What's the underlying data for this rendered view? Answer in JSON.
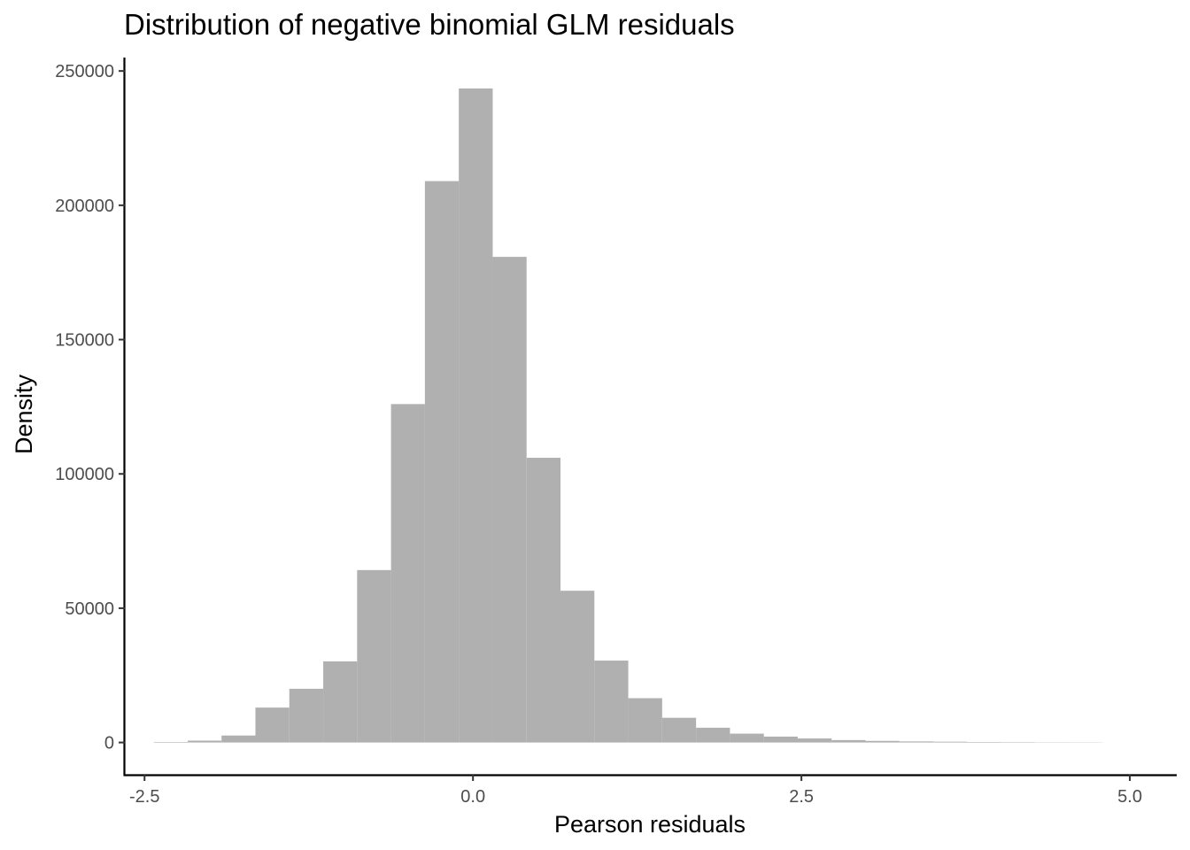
{
  "chart_data": {
    "type": "bar",
    "title": "Distribution of negative binomial GLM residuals",
    "xlabel": "Pearson residuals",
    "ylabel": "Density",
    "xlim": [
      -2.65,
      5.35
    ],
    "ylim": [
      -12000,
      255000
    ],
    "xticks": [
      -2.5,
      0.0,
      2.5,
      5.0
    ],
    "xtick_labels": [
      "-2.5",
      "0.0",
      "2.5",
      "5.0"
    ],
    "yticks": [
      0,
      50000,
      100000,
      150000,
      200000,
      250000
    ],
    "ytick_labels": [
      "0",
      "50000",
      "100000",
      "150000",
      "200000",
      "250000"
    ],
    "bin_width": 0.258,
    "bins": [
      {
        "x0": -2.43,
        "x1": -2.172,
        "value": 200
      },
      {
        "x0": -2.172,
        "x1": -1.914,
        "value": 700
      },
      {
        "x0": -1.914,
        "x1": -1.656,
        "value": 2600
      },
      {
        "x0": -1.656,
        "x1": -1.398,
        "value": 13000
      },
      {
        "x0": -1.398,
        "x1": -1.14,
        "value": 20000
      },
      {
        "x0": -1.14,
        "x1": -0.882,
        "value": 30200
      },
      {
        "x0": -0.882,
        "x1": -0.624,
        "value": 64200
      },
      {
        "x0": -0.624,
        "x1": -0.366,
        "value": 126000
      },
      {
        "x0": -0.366,
        "x1": -0.108,
        "value": 209000
      },
      {
        "x0": -0.108,
        "x1": 0.15,
        "value": 243500
      },
      {
        "x0": 0.15,
        "x1": 0.408,
        "value": 180800
      },
      {
        "x0": 0.408,
        "x1": 0.666,
        "value": 106000
      },
      {
        "x0": 0.666,
        "x1": 0.924,
        "value": 56500
      },
      {
        "x0": 0.924,
        "x1": 1.182,
        "value": 30500
      },
      {
        "x0": 1.182,
        "x1": 1.44,
        "value": 16500
      },
      {
        "x0": 1.44,
        "x1": 1.698,
        "value": 9200
      },
      {
        "x0": 1.698,
        "x1": 1.956,
        "value": 5500
      },
      {
        "x0": 1.956,
        "x1": 2.214,
        "value": 3300
      },
      {
        "x0": 2.214,
        "x1": 2.472,
        "value": 2200
      },
      {
        "x0": 2.472,
        "x1": 2.73,
        "value": 1500
      },
      {
        "x0": 2.73,
        "x1": 2.988,
        "value": 900
      },
      {
        "x0": 2.988,
        "x1": 3.246,
        "value": 600
      },
      {
        "x0": 3.246,
        "x1": 3.504,
        "value": 400
      },
      {
        "x0": 3.504,
        "x1": 3.762,
        "value": 300
      },
      {
        "x0": 3.762,
        "x1": 4.02,
        "value": 200
      },
      {
        "x0": 4.02,
        "x1": 4.278,
        "value": 150
      },
      {
        "x0": 4.278,
        "x1": 4.536,
        "value": 100
      },
      {
        "x0": 4.536,
        "x1": 4.794,
        "value": 80
      }
    ],
    "bar_color": "#b0b0b0",
    "grid": false,
    "legend": "none"
  }
}
